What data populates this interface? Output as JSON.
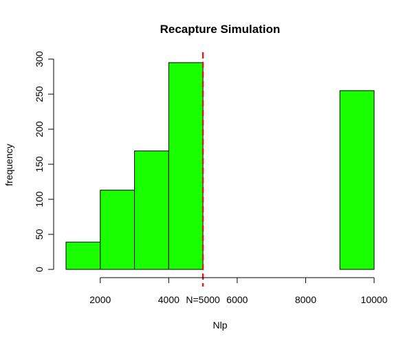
{
  "chart_data": {
    "type": "bar",
    "title": "Recapture Simulation",
    "xlabel": "Nlp",
    "ylabel": "frequency",
    "bins": [
      {
        "from": 1000,
        "to": 2000,
        "count": 39
      },
      {
        "from": 2000,
        "to": 3000,
        "count": 113
      },
      {
        "from": 3000,
        "to": 4000,
        "count": 169
      },
      {
        "from": 4000,
        "to": 5000,
        "count": 295
      },
      {
        "from": 5000,
        "to": 6000,
        "count": 0
      },
      {
        "from": 6000,
        "to": 7000,
        "count": 0
      },
      {
        "from": 7000,
        "to": 8000,
        "count": 0
      },
      {
        "from": 8000,
        "to": 9000,
        "count": 0
      },
      {
        "from": 9000,
        "to": 10000,
        "count": 255
      }
    ],
    "xlim": [
      1000,
      10000
    ],
    "ylim": [
      0,
      300
    ],
    "xticks": [
      2000,
      4000,
      6000,
      8000,
      10000
    ],
    "yticks": [
      0,
      50,
      100,
      150,
      200,
      250,
      300
    ],
    "reference_line": {
      "x": 5000,
      "label": "N=5000",
      "color": "#cc2222",
      "style": "dashed"
    },
    "bar_color": "#1aff00",
    "grid": false
  }
}
